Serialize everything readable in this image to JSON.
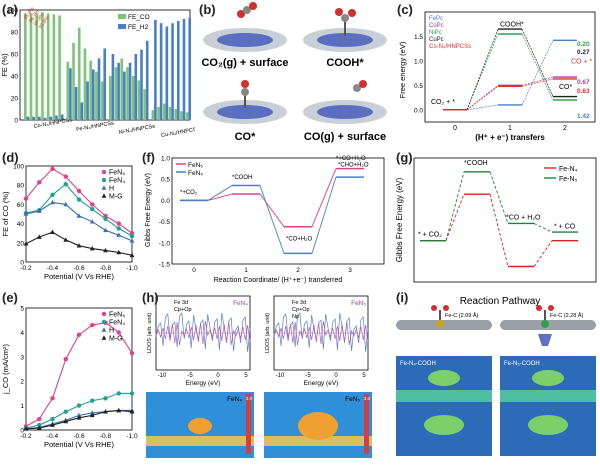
{
  "panel_labels": [
    "(a)",
    "(b)",
    "(c)",
    "(d)",
    "(e)",
    "(f)",
    "(g)",
    "(h)",
    "(i)"
  ],
  "chart_data": [
    {
      "id": "a",
      "type": "bar",
      "ylabel": "FE (%)",
      "ylim": [
        0,
        100
      ],
      "yticks": [
        0,
        20,
        40,
        60,
        80,
        100
      ],
      "categories": [
        "Co-N₄/HNPCSs",
        "Fe-N₄/HNPCSs",
        "Ni-N₄/HNPCSs",
        "Cu-N₄/HNPCSs"
      ],
      "x": [
        -0.3,
        -0.4,
        -0.5,
        -0.6,
        -0.7,
        -0.8,
        -0.9
      ],
      "legend": [
        "FE_CO",
        "FE_H2"
      ],
      "colors": {
        "co": "#7cc576",
        "h2": "#4a7ec7",
        "lab": "#e03030"
      },
      "data_labels": [
        "95.8%",
        "96.7%",
        "97.8%",
        "93.6%"
      ],
      "series": [
        {
          "name": "FE_CO",
          "groups": [
            [
              97,
              97,
              97,
              98,
              97,
              96,
              95
            ],
            [
              53,
              70,
              84,
              65,
              54,
              44,
              35
            ],
            [
              40,
              48,
              56,
              48,
              40,
              36,
              28
            ],
            [
              9,
              12,
              15,
              12,
              10,
              8,
              7
            ]
          ]
        },
        {
          "name": "FE_H2",
          "groups": [
            [
              3,
              3,
              3,
              2,
              3,
              4,
              5
            ],
            [
              47,
              30,
              16,
              35,
              46,
              56,
              65
            ],
            [
              60,
              52,
              44,
              52,
              60,
              64,
              72
            ],
            [
              91,
              88,
              85,
              88,
              90,
              92,
              93
            ]
          ]
        }
      ]
    },
    {
      "id": "c",
      "type": "line",
      "ylabel": "Free energy (eV)",
      "xlabel": "(H⁺ + e⁻) transfers",
      "xticks": [
        0,
        1,
        2
      ],
      "ylim": [
        -0.25,
        2.0
      ],
      "yticks": [
        0.0,
        0.5,
        1.0,
        1.5
      ],
      "annotations": [
        "COOH*",
        "CO + *",
        "CO*",
        "CO₂ + *"
      ],
      "series": [
        {
          "name": "FePc",
          "color": "#4a7ec7",
          "values": [
            0,
            0.1,
            1.42
          ]
        },
        {
          "name": "CoPc",
          "color": "#a040a0",
          "values": [
            0,
            0.5,
            0.67
          ]
        },
        {
          "name": "NiPc",
          "color": "#30a050",
          "values": [
            0,
            1.55,
            0.2
          ]
        },
        {
          "name": "CuPc",
          "color": "#202020",
          "values": [
            0,
            1.65,
            0.27
          ]
        },
        {
          "name": "Co-N₄/HNPCSs",
          "color": "#e03030",
          "values": [
            0,
            0.48,
            0.63
          ]
        }
      ],
      "value_labels": [
        "0.20",
        "0.27",
        "0.67",
        "0.63",
        "1.42"
      ]
    },
    {
      "id": "d",
      "type": "line",
      "ylabel": "FE of CO (%)",
      "xlabel": "Potential (V Vs RHE)",
      "x": [
        -0.2,
        -0.3,
        -0.4,
        -0.5,
        -0.6,
        -0.7,
        -0.8,
        -0.9,
        -1.0
      ],
      "xticks": [
        -0.2,
        -0.4,
        -0.6,
        -0.8,
        -1.0
      ],
      "ylim": [
        0,
        100
      ],
      "yticks": [
        0,
        20,
        40,
        60,
        80,
        100
      ],
      "series": [
        {
          "name": "FeN₅",
          "color": "#e0408a",
          "marker": "circle",
          "values": [
            66,
            83,
            97,
            89,
            74,
            60,
            48,
            40,
            30
          ]
        },
        {
          "name": "FeN₄",
          "color": "#20a090",
          "marker": "circle",
          "values": [
            51,
            54,
            70,
            81,
            65,
            55,
            45,
            35,
            27
          ]
        },
        {
          "name": "H",
          "color": "#3a6fb0",
          "marker": "triangle",
          "values": [
            50,
            53,
            62,
            60,
            48,
            42,
            33,
            28,
            22
          ]
        },
        {
          "name": "M-G",
          "color": "#202020",
          "marker": "triangle",
          "values": [
            19,
            26,
            31,
            23,
            17,
            14,
            12,
            10,
            7
          ]
        }
      ]
    },
    {
      "id": "e",
      "type": "line",
      "ylabel": "j_CO (mA/cm²)",
      "xlabel": "Potential (V Vs RHE)",
      "x": [
        -0.2,
        -0.3,
        -0.4,
        -0.5,
        -0.6,
        -0.7,
        -0.8,
        -0.9,
        -1.0
      ],
      "xticks": [
        -0.2,
        -0.4,
        -0.6,
        -0.8,
        -1.0
      ],
      "ylim": [
        0,
        5
      ],
      "yticks": [
        0,
        1,
        2,
        3,
        4,
        5
      ],
      "series": [
        {
          "name": "FeN₅",
          "color": "#e0408a",
          "marker": "circle",
          "values": [
            0.15,
            0.45,
            1.3,
            2.9,
            3.9,
            4.3,
            4.4,
            4.0,
            3.15
          ]
        },
        {
          "name": "FeN₄",
          "color": "#20a090",
          "marker": "circle",
          "values": [
            0.08,
            0.2,
            0.45,
            0.75,
            1.0,
            1.2,
            1.3,
            1.5,
            1.5
          ]
        },
        {
          "name": "H",
          "color": "#3a6fb0",
          "marker": "triangle",
          "values": [
            0.05,
            0.1,
            0.25,
            0.4,
            0.6,
            0.7,
            0.75,
            0.8,
            0.8
          ]
        },
        {
          "name": "M-G",
          "color": "#202020",
          "marker": "triangle",
          "values": [
            0.05,
            0.08,
            0.2,
            0.35,
            0.5,
            0.6,
            0.75,
            0.8,
            0.75
          ]
        }
      ]
    },
    {
      "id": "f",
      "type": "line",
      "ylabel": "Gibbs Free Energy (eV)",
      "xlabel": "Reaction Coordinate/ (H⁺+e⁻) transferred",
      "xticks": [
        0,
        1,
        2,
        3
      ],
      "yticks": [
        -1.5,
        -1.0,
        -0.5,
        0.0,
        0.5,
        1.0
      ],
      "ylim": [
        -1.5,
        1.0
      ],
      "annotations": [
        "*+CO₂",
        "*COOH",
        "*CO+H₂O",
        "*+CO+H₂O",
        "*CHO+H₂O"
      ],
      "series": [
        {
          "name": "FeN₅",
          "color": "#e0408a",
          "values": [
            0,
            0.15,
            -0.62,
            0.75
          ]
        },
        {
          "name": "FeN₄",
          "color": "#4a7ec7",
          "values": [
            0,
            0.35,
            -1.25,
            0.55
          ]
        }
      ]
    },
    {
      "id": "g",
      "type": "line",
      "ylabel": "LDOS (arb. unit)",
      "xlabel": "Energy (eV)",
      "xticks": [
        -10,
        -5,
        0,
        5
      ],
      "panels": [
        {
          "title": "FeN₄",
          "legend": [
            "Fe 3d",
            "Cp+Op"
          ]
        },
        {
          "title": "FeN₅",
          "legend": [
            "Fe 3d",
            "Cp+Op",
            "Np"
          ]
        }
      ],
      "colorbar_label": "3.0"
    },
    {
      "id": "h",
      "type": "line",
      "ylabel": "Gibbs Free Energy (eV)",
      "annotations": [
        "*COOH",
        "* + CO₂",
        "*CO + H₂O",
        "* + CO"
      ],
      "series": [
        {
          "name": "Fe-N₄",
          "color": "#e02020",
          "values": [
            0,
            1.35,
            -0.75,
            0
          ]
        },
        {
          "name": "Fe-N₅",
          "color": "#208040",
          "values": [
            0,
            2.0,
            0.5,
            0.25
          ]
        }
      ]
    }
  ],
  "panel_b": {
    "captions": [
      "CO₂(g) + surface",
      "COOH*",
      "CO*",
      "CO(g) + surface"
    ]
  },
  "panel_i": {
    "title": "Reaction Pathway",
    "bond1": "Fe-C (2.09 Å)",
    "bond2": "Fe-C (2.28 Å)",
    "map1": "Fe-N₄-COOH",
    "map2": "Fe-N₅-COOH"
  }
}
